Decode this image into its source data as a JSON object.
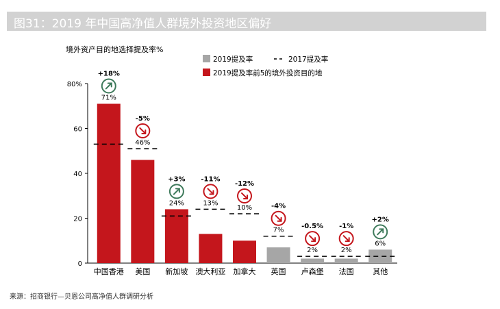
{
  "title": "图31：2019 年中国高净值人群境外投资地区偏好",
  "source": "来源：招商银行—贝恩公司高净值人群调研分析",
  "chart_data": {
    "type": "bar",
    "ylabel": "境外资产目的地选择提及率%",
    "ylim": [
      0,
      80
    ],
    "yticks": [
      "0",
      "20",
      "40",
      "60",
      "80%"
    ],
    "categories": [
      "中国香港",
      "美国",
      "新加坡",
      "澳大利亚",
      "加拿大",
      "英国",
      "卢森堡",
      "法国",
      "其他"
    ],
    "value_labels": [
      "71%",
      "46%",
      "24%",
      "13%",
      "10%",
      "7%",
      "2%",
      "2%",
      "6%"
    ],
    "series": [
      {
        "name": "2019提及率",
        "values": [
          71,
          46,
          24,
          13,
          10,
          7,
          2,
          2,
          6
        ]
      },
      {
        "name": "2017提及率",
        "values": [
          53,
          51,
          21,
          24,
          22,
          12,
          3,
          3,
          3
        ]
      }
    ],
    "top5_count": 5,
    "changes": [
      "+18%",
      "-5%",
      "+3%",
      "-11%",
      "-12%",
      "-4%",
      "-0.5%",
      "-1%",
      "+2%"
    ],
    "change_direction": [
      "up",
      "down",
      "up",
      "down",
      "down",
      "down",
      "down",
      "down",
      "up"
    ],
    "legend": {
      "items": [
        {
          "label": "2019提及率",
          "kind": "gray"
        },
        {
          "label": "2017提及率",
          "kind": "dash"
        },
        {
          "label": "2019提及率前5的境外投资目的地",
          "kind": "red"
        }
      ]
    },
    "colors": {
      "red": "#c4161c",
      "gray": "#a6a6a6",
      "up": "#3e7a5b",
      "down": "#c4161c",
      "axis": "#000000"
    }
  }
}
